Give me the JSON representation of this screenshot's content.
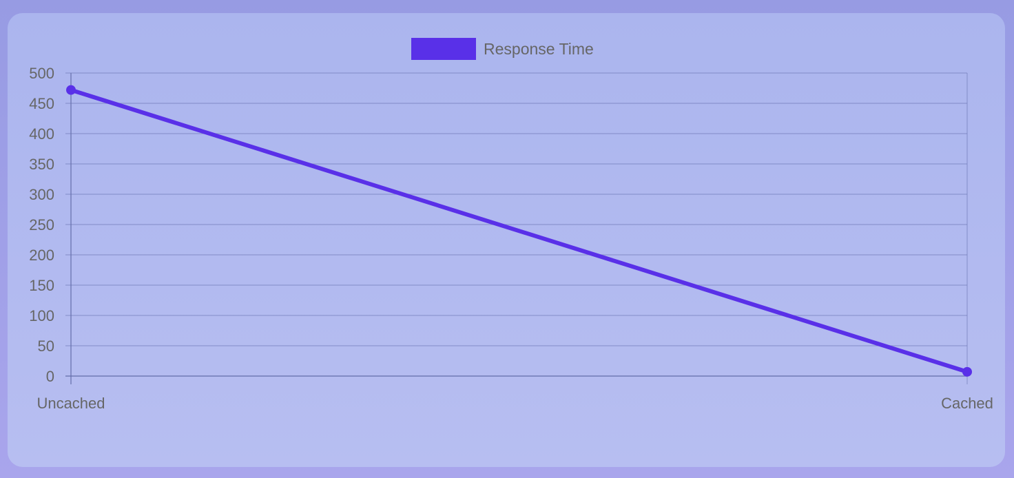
{
  "chart_data": {
    "type": "line",
    "categories": [
      "Uncached",
      "Cached"
    ],
    "series": [
      {
        "name": "Response Time",
        "values": [
          472,
          7
        ],
        "color": "#5930e8"
      }
    ],
    "xlabel": "",
    "ylabel": "",
    "ylim": [
      0,
      500
    ],
    "yticks": [
      0,
      50,
      100,
      150,
      200,
      250,
      300,
      350,
      400,
      450,
      500
    ],
    "grid": true,
    "legend_position": "top-center"
  }
}
